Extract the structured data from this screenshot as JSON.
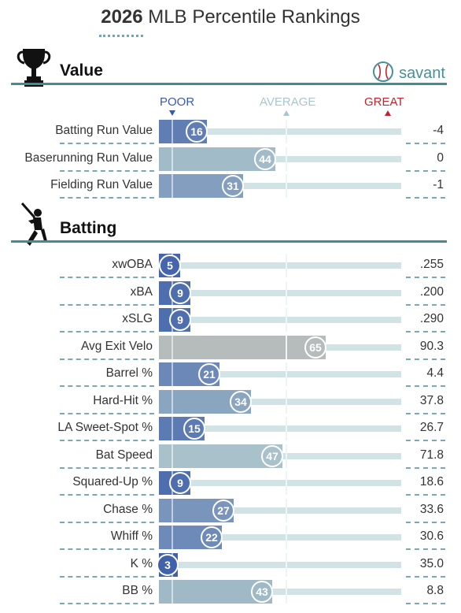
{
  "header": {
    "year": "2026",
    "title_rest": "MLB Percentile Rankings"
  },
  "brand": {
    "text": "savant"
  },
  "scale": {
    "poor": "POOR",
    "average": "AVERAGE",
    "great": "GREAT"
  },
  "sections": {
    "value": {
      "label": "Value",
      "icon": "trophy-icon",
      "rows": [
        {
          "name": "Batting Run Value",
          "pct": "16",
          "value": "-4"
        },
        {
          "name": "Baserunning Run Value",
          "pct": "44",
          "value": "0"
        },
        {
          "name": "Fielding Run Value",
          "pct": "31",
          "value": "-1"
        }
      ]
    },
    "batting": {
      "label": "Batting",
      "icon": "batter-icon",
      "rows": [
        {
          "name": "xwOBA",
          "pct": "5",
          "value": ".255"
        },
        {
          "name": "xBA",
          "pct": "9",
          "value": ".200"
        },
        {
          "name": "xSLG",
          "pct": "9",
          "value": ".290"
        },
        {
          "name": "Avg Exit Velo",
          "pct": "65",
          "value": "90.3"
        },
        {
          "name": "Barrel %",
          "pct": "21",
          "value": "4.4"
        },
        {
          "name": "Hard-Hit %",
          "pct": "34",
          "value": "37.8"
        },
        {
          "name": "LA Sweet-Spot %",
          "pct": "15",
          "value": "26.7"
        },
        {
          "name": "Bat Speed",
          "pct": "47",
          "value": "71.8"
        },
        {
          "name": "Squared-Up %",
          "pct": "9",
          "value": "18.6"
        },
        {
          "name": "Chase %",
          "pct": "27",
          "value": "33.6"
        },
        {
          "name": "Whiff %",
          "pct": "22",
          "value": "30.6"
        },
        {
          "name": "K %",
          "pct": "3",
          "value": "35.0"
        },
        {
          "name": "BB %",
          "pct": "43",
          "value": "8.8"
        }
      ]
    }
  },
  "colors": {
    "accent": "#3f8e96",
    "poor": "#3a5aa8",
    "average": "#a9c6cc",
    "great": "#c0242d"
  }
}
